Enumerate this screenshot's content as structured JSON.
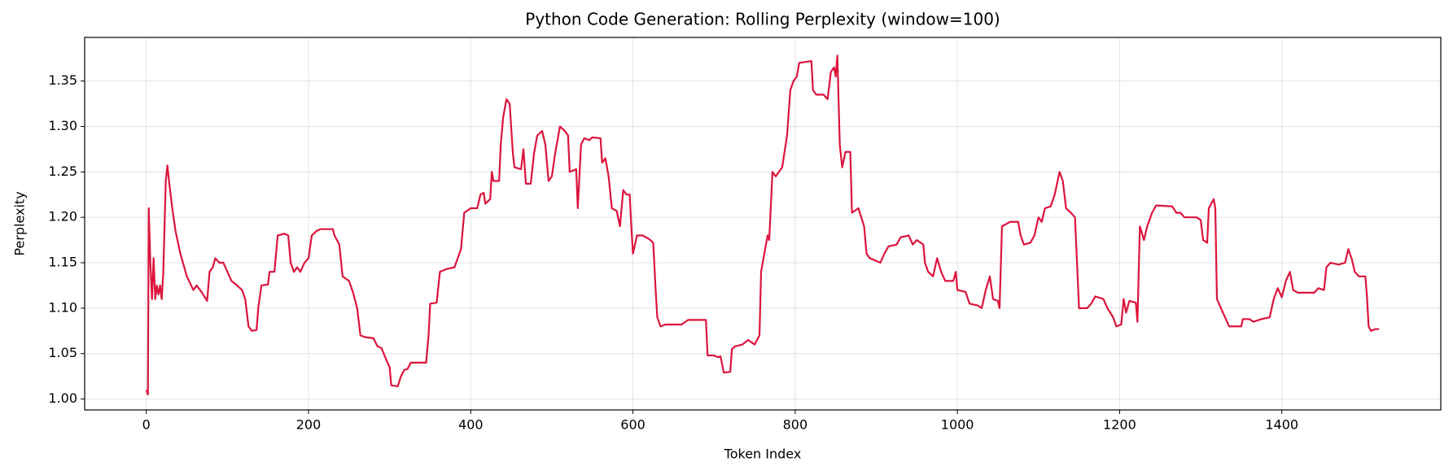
{
  "chart_data": {
    "type": "line",
    "title": "Python Code Generation: Rolling Perplexity (window=100)",
    "x_label": "Token Index",
    "y_label": "Perplexity",
    "color": "#dc143c",
    "grid": true,
    "xlim": [
      -76,
      1596
    ],
    "ylim": [
      0.988,
      1.398
    ],
    "xticks": [
      0,
      200,
      400,
      600,
      800,
      1000,
      1200,
      1400
    ],
    "yticks": [
      {
        "value": 1.0,
        "label": "1.00"
      },
      1.05,
      {
        "value": 1.1,
        "label": "1.10"
      },
      1.15,
      {
        "value": 1.2,
        "label": "1.20"
      },
      1.25,
      {
        "value": 1.3,
        "label": "1.30"
      },
      1.35
    ],
    "x": [
      0,
      2,
      3,
      5,
      7,
      9,
      11,
      13,
      15,
      17,
      19,
      21,
      24,
      26,
      28,
      32,
      36,
      42,
      50,
      58,
      62,
      68,
      75,
      78,
      82,
      85,
      90,
      95,
      100,
      105,
      112,
      118,
      122,
      126,
      130,
      136,
      138,
      142,
      150,
      152,
      158,
      162,
      170,
      175,
      178,
      182,
      186,
      190,
      195,
      200,
      204,
      210,
      215,
      230,
      232,
      238,
      242,
      250,
      255,
      260,
      264,
      270,
      280,
      285,
      290,
      295,
      300,
      302,
      310,
      314,
      318,
      322,
      326,
      345,
      348,
      350,
      358,
      362,
      370,
      380,
      382,
      388,
      392,
      400,
      408,
      412,
      416,
      418,
      424,
      426,
      428,
      435,
      437,
      440,
      444,
      448,
      452,
      454,
      462,
      465,
      468,
      474,
      478,
      482,
      488,
      492,
      496,
      500,
      504,
      507,
      510,
      516,
      520,
      522,
      530,
      532,
      536,
      540,
      546,
      550,
      560,
      562,
      566,
      570,
      574,
      580,
      584,
      588,
      592,
      596,
      598,
      600,
      605,
      612,
      620,
      625,
      628,
      630,
      634,
      640,
      660,
      668,
      690,
      692,
      700,
      705,
      708,
      712,
      720,
      722,
      726,
      735,
      742,
      750,
      756,
      758,
      762,
      766,
      768,
      772,
      776,
      784,
      790,
      794,
      798,
      802,
      805,
      820,
      822,
      826,
      835,
      840,
      844,
      848,
      850,
      852,
      855,
      858,
      862,
      868,
      870,
      878,
      885,
      888,
      892,
      900,
      905,
      910,
      915,
      925,
      930,
      940,
      945,
      950,
      958,
      960,
      964,
      970,
      975,
      980,
      985,
      995,
      998,
      1000,
      1010,
      1015,
      1025,
      1030,
      1035,
      1040,
      1044,
      1050,
      1052,
      1055,
      1065,
      1075,
      1078,
      1082,
      1090,
      1095,
      1100,
      1104,
      1108,
      1115,
      1120,
      1126,
      1130,
      1134,
      1140,
      1145,
      1150,
      1160,
      1165,
      1170,
      1180,
      1185,
      1192,
      1196,
      1202,
      1205,
      1208,
      1212,
      1220,
      1222,
      1225,
      1230,
      1234,
      1240,
      1245,
      1265,
      1270,
      1275,
      1280,
      1295,
      1300,
      1303,
      1308,
      1310,
      1316,
      1318,
      1320,
      1325,
      1330,
      1335,
      1350,
      1352,
      1360,
      1365,
      1375,
      1385,
      1390,
      1395,
      1400,
      1405,
      1410,
      1414,
      1420,
      1440,
      1445,
      1452,
      1455,
      1460,
      1470,
      1478,
      1482,
      1486,
      1490,
      1495,
      1503,
      1505,
      1507,
      1510,
      1515,
      1520
    ],
    "values": [
      1.01,
      1.005,
      1.21,
      1.15,
      1.11,
      1.155,
      1.11,
      1.125,
      1.115,
      1.125,
      1.11,
      1.14,
      1.24,
      1.257,
      1.24,
      1.21,
      1.185,
      1.16,
      1.135,
      1.12,
      1.125,
      1.118,
      1.108,
      1.14,
      1.145,
      1.155,
      1.15,
      1.15,
      1.14,
      1.13,
      1.125,
      1.12,
      1.11,
      1.08,
      1.075,
      1.076,
      1.1,
      1.125,
      1.126,
      1.14,
      1.14,
      1.18,
      1.182,
      1.18,
      1.15,
      1.14,
      1.145,
      1.14,
      1.15,
      1.155,
      1.18,
      1.185,
      1.187,
      1.187,
      1.18,
      1.17,
      1.135,
      1.13,
      1.117,
      1.1,
      1.07,
      1.068,
      1.067,
      1.058,
      1.056,
      1.045,
      1.035,
      1.015,
      1.014,
      1.025,
      1.032,
      1.033,
      1.04,
      1.04,
      1.07,
      1.105,
      1.106,
      1.14,
      1.143,
      1.145,
      1.15,
      1.165,
      1.205,
      1.21,
      1.21,
      1.225,
      1.227,
      1.215,
      1.22,
      1.25,
      1.24,
      1.24,
      1.28,
      1.31,
      1.33,
      1.325,
      1.27,
      1.255,
      1.253,
      1.275,
      1.237,
      1.237,
      1.27,
      1.29,
      1.295,
      1.28,
      1.24,
      1.245,
      1.27,
      1.285,
      1.3,
      1.295,
      1.29,
      1.25,
      1.253,
      1.21,
      1.28,
      1.287,
      1.285,
      1.288,
      1.287,
      1.26,
      1.265,
      1.245,
      1.21,
      1.207,
      1.19,
      1.23,
      1.225,
      1.225,
      1.19,
      1.16,
      1.18,
      1.18,
      1.176,
      1.172,
      1.12,
      1.09,
      1.08,
      1.082,
      1.082,
      1.087,
      1.087,
      1.048,
      1.048,
      1.046,
      1.047,
      1.029,
      1.03,
      1.055,
      1.058,
      1.06,
      1.065,
      1.06,
      1.07,
      1.14,
      1.16,
      1.18,
      1.175,
      1.25,
      1.245,
      1.255,
      1.29,
      1.34,
      1.35,
      1.355,
      1.37,
      1.372,
      1.34,
      1.335,
      1.335,
      1.33,
      1.36,
      1.365,
      1.355,
      1.378,
      1.28,
      1.255,
      1.272,
      1.272,
      1.205,
      1.21,
      1.19,
      1.16,
      1.155,
      1.152,
      1.15,
      1.16,
      1.168,
      1.17,
      1.178,
      1.18,
      1.17,
      1.175,
      1.17,
      1.15,
      1.14,
      1.135,
      1.155,
      1.14,
      1.13,
      1.13,
      1.14,
      1.12,
      1.118,
      1.105,
      1.103,
      1.1,
      1.12,
      1.135,
      1.11,
      1.108,
      1.1,
      1.19,
      1.195,
      1.195,
      1.18,
      1.17,
      1.172,
      1.18,
      1.2,
      1.195,
      1.21,
      1.212,
      1.225,
      1.25,
      1.24,
      1.21,
      1.205,
      1.2,
      1.1,
      1.1,
      1.105,
      1.113,
      1.11,
      1.1,
      1.09,
      1.08,
      1.082,
      1.11,
      1.095,
      1.108,
      1.106,
      1.085,
      1.19,
      1.175,
      1.19,
      1.205,
      1.213,
      1.212,
      1.205,
      1.205,
      1.2,
      1.2,
      1.197,
      1.175,
      1.172,
      1.21,
      1.22,
      1.21,
      1.11,
      1.1,
      1.09,
      1.08,
      1.08,
      1.088,
      1.088,
      1.085,
      1.088,
      1.09,
      1.11,
      1.122,
      1.112,
      1.13,
      1.14,
      1.12,
      1.117,
      1.117,
      1.122,
      1.12,
      1.145,
      1.15,
      1.148,
      1.15,
      1.165,
      1.155,
      1.14,
      1.135,
      1.135,
      1.113,
      1.08,
      1.075,
      1.077,
      1.077
    ]
  }
}
